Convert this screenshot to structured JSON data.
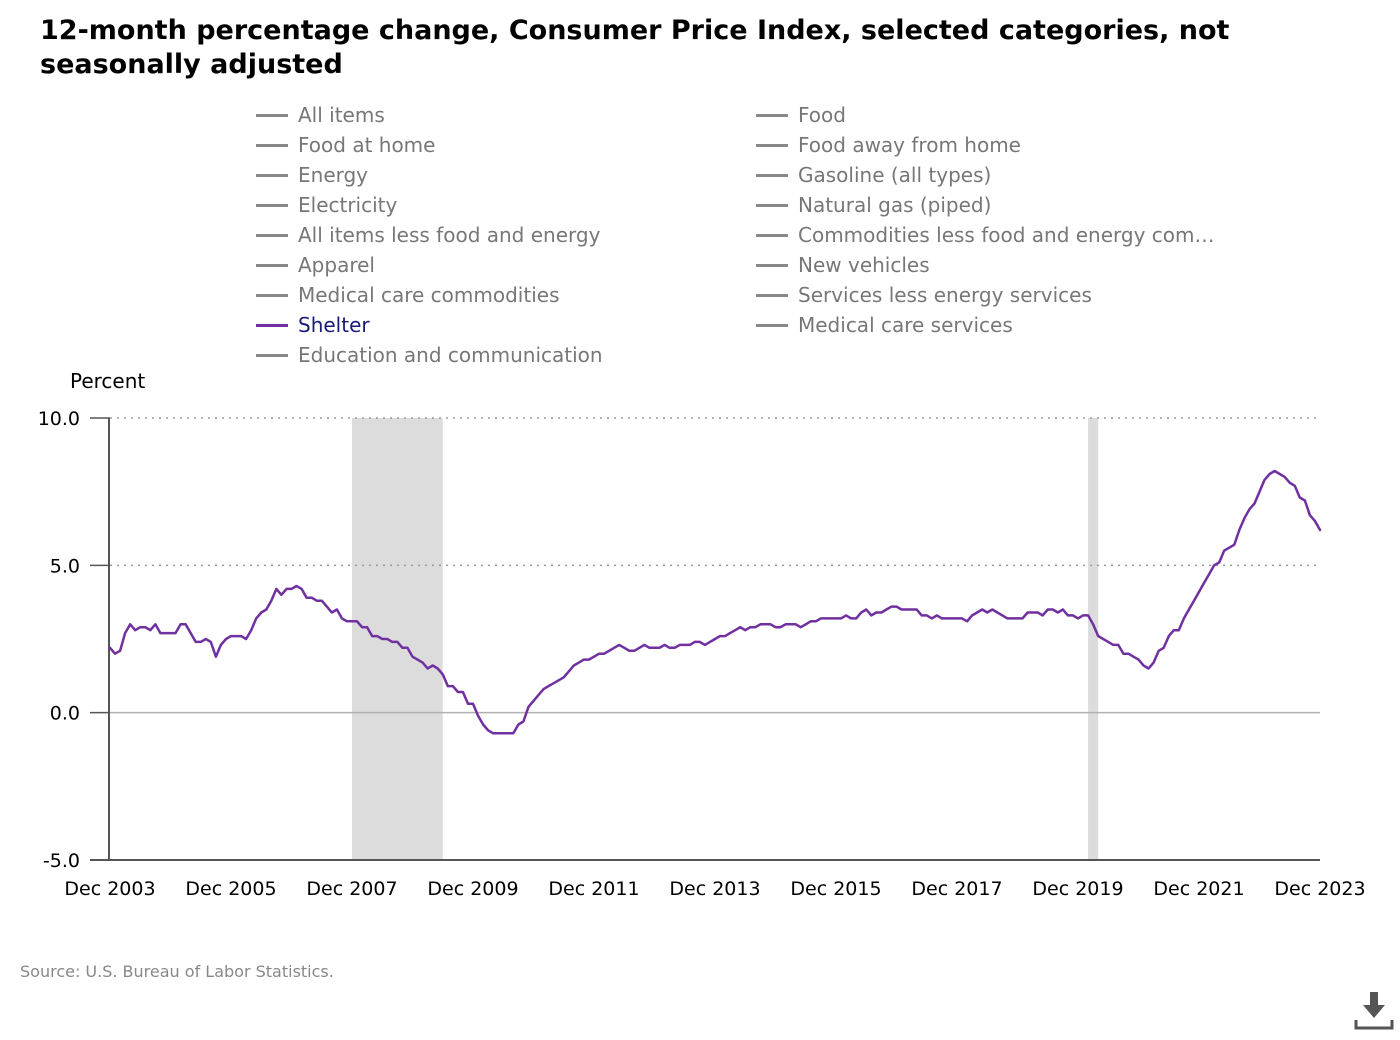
{
  "chart_data": {
    "type": "line",
    "title": "12-month percentage change, Consumer Price Index, selected categories, not seasonally adjusted",
    "ylabel": "Percent",
    "ylim": [
      -5.0,
      10.0
    ],
    "yticks": [
      "10.0",
      "5.0",
      "0.0",
      "-5.0"
    ],
    "ytick_values": [
      10,
      5,
      0,
      -5
    ],
    "xlim": [
      "2003-12",
      "2023-12"
    ],
    "xticks": [
      "Dec 2003",
      "Dec 2005",
      "Dec 2007",
      "Dec 2009",
      "Dec 2011",
      "Dec 2013",
      "Dec 2015",
      "Dec 2017",
      "Dec 2019",
      "Dec 2021",
      "Dec 2023"
    ],
    "xtick_dates": [
      "2003-12",
      "2005-12",
      "2007-12",
      "2009-12",
      "2011-12",
      "2013-12",
      "2015-12",
      "2017-12",
      "2019-12",
      "2021-12",
      "2023-12"
    ],
    "grid": "horizontal dotted at 5.0 and 10.0, solid at 0.0",
    "legend_position": "top",
    "recessions": [
      {
        "start": "2007-12",
        "end": "2009-06"
      },
      {
        "start": "2020-02",
        "end": "2020-04"
      }
    ],
    "legend": [
      "All items",
      "Food",
      "Food at home",
      "Food away from home",
      "Energy",
      "Gasoline (all types)",
      "Electricity",
      "Natural gas (piped)",
      "All items less food and energy",
      "Commodities less food and energy com…",
      "Apparel",
      "New vehicles",
      "Medical care commodities",
      "Services less energy services",
      "Shelter",
      "Medical care services",
      "Education and communication"
    ],
    "active_series": "Shelter",
    "series": [
      {
        "name": "Shelter",
        "color": "#7030a0",
        "start": "2003-12",
        "frequency": "monthly",
        "values": [
          2.2,
          2.0,
          2.1,
          2.7,
          3.0,
          2.8,
          2.9,
          2.9,
          2.8,
          3.0,
          2.7,
          2.7,
          2.7,
          2.7,
          3.0,
          3.0,
          2.7,
          2.4,
          2.4,
          2.5,
          2.4,
          1.9,
          2.3,
          2.5,
          2.6,
          2.6,
          2.6,
          2.5,
          2.8,
          3.2,
          3.4,
          3.5,
          3.8,
          4.2,
          4.0,
          4.2,
          4.2,
          4.3,
          4.2,
          3.9,
          3.9,
          3.8,
          3.8,
          3.6,
          3.4,
          3.5,
          3.2,
          3.1,
          3.1,
          3.1,
          2.9,
          2.9,
          2.6,
          2.6,
          2.5,
          2.5,
          2.4,
          2.4,
          2.2,
          2.2,
          1.9,
          1.8,
          1.7,
          1.5,
          1.6,
          1.5,
          1.3,
          0.9,
          0.9,
          0.7,
          0.7,
          0.3,
          0.3,
          -0.1,
          -0.4,
          -0.6,
          -0.7,
          -0.7,
          -0.7,
          -0.7,
          -0.7,
          -0.4,
          -0.3,
          0.2,
          0.4,
          0.6,
          0.8,
          0.9,
          1.0,
          1.1,
          1.2,
          1.4,
          1.6,
          1.7,
          1.8,
          1.8,
          1.9,
          2.0,
          2.0,
          2.1,
          2.2,
          2.3,
          2.2,
          2.1,
          2.1,
          2.2,
          2.3,
          2.2,
          2.2,
          2.2,
          2.3,
          2.2,
          2.2,
          2.3,
          2.3,
          2.3,
          2.4,
          2.4,
          2.3,
          2.4,
          2.5,
          2.6,
          2.6,
          2.7,
          2.8,
          2.9,
          2.8,
          2.9,
          2.9,
          3.0,
          3.0,
          3.0,
          2.9,
          2.9,
          3.0,
          3.0,
          3.0,
          2.9,
          3.0,
          3.1,
          3.1,
          3.2,
          3.2,
          3.2,
          3.2,
          3.2,
          3.3,
          3.2,
          3.2,
          3.4,
          3.5,
          3.3,
          3.4,
          3.4,
          3.5,
          3.6,
          3.6,
          3.5,
          3.5,
          3.5,
          3.5,
          3.3,
          3.3,
          3.2,
          3.3,
          3.2,
          3.2,
          3.2,
          3.2,
          3.2,
          3.1,
          3.3,
          3.4,
          3.5,
          3.4,
          3.5,
          3.4,
          3.3,
          3.2,
          3.2,
          3.2,
          3.2,
          3.4,
          3.4,
          3.4,
          3.3,
          3.5,
          3.5,
          3.4,
          3.5,
          3.3,
          3.3,
          3.2,
          3.3,
          3.3,
          3.0,
          2.6,
          2.5,
          2.4,
          2.3,
          2.3,
          2.0,
          2.0,
          1.9,
          1.8,
          1.6,
          1.5,
          1.7,
          2.1,
          2.2,
          2.6,
          2.8,
          2.8,
          3.2,
          3.5,
          3.8,
          4.1,
          4.4,
          4.7,
          5.0,
          5.1,
          5.5,
          5.6,
          5.7,
          6.2,
          6.6,
          6.9,
          7.1,
          7.5,
          7.9,
          8.1,
          8.2,
          8.1,
          8.0,
          7.8,
          7.7,
          7.3,
          7.2,
          6.7,
          6.5,
          6.2
        ]
      }
    ]
  },
  "source": "Source: U.S. Bureau of Labor Statistics.",
  "icons": {
    "download": "download-icon"
  }
}
